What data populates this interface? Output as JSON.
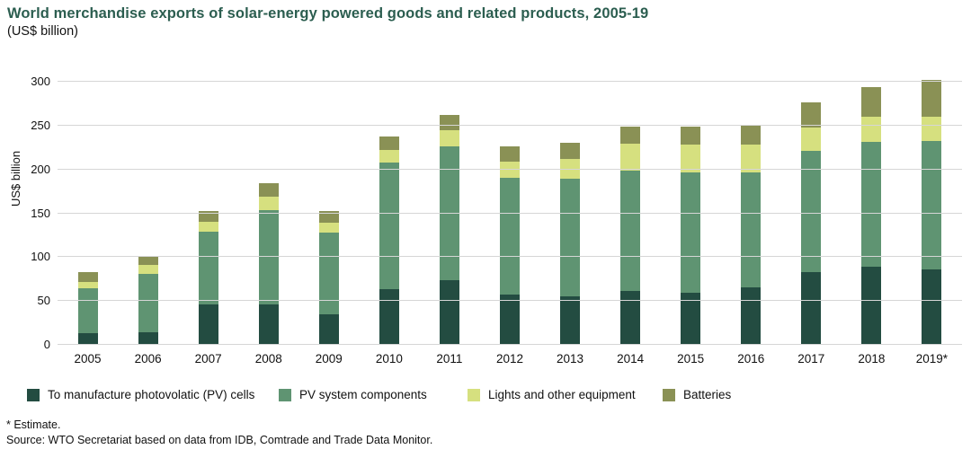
{
  "header": {
    "title": "World merchandise exports of solar-energy powered goods and related products, 2005-19",
    "subtitle": "(US$ billion)"
  },
  "chart_data": {
    "type": "bar",
    "stacked": true,
    "title": "World merchandise exports of solar-energy powered goods and related products, 2005-19 (US$ billion)",
    "xlabel": "",
    "ylabel": "US$ billion",
    "ylim": [
      0,
      300
    ],
    "yticks": [
      0,
      50,
      100,
      150,
      200,
      250,
      300
    ],
    "grid": true,
    "legend_position": "bottom",
    "categories": [
      "2005",
      "2006",
      "2007",
      "2008",
      "2009",
      "2010",
      "2011",
      "2012",
      "2013",
      "2014",
      "2015",
      "2016",
      "2017",
      "2018",
      "2019*"
    ],
    "series": [
      {
        "name": "To manufacture photovolatic (PV) cells",
        "color": "#234c41",
        "values": [
          12,
          13,
          45,
          45,
          34,
          62,
          73,
          56,
          54,
          60,
          58,
          65,
          82,
          88,
          85
        ]
      },
      {
        "name": "PV system components",
        "color": "#5f9472",
        "values": [
          52,
          67,
          83,
          108,
          93,
          145,
          152,
          133,
          134,
          138,
          138,
          131,
          138,
          142,
          146
        ]
      },
      {
        "name": "Lights and other equipment",
        "color": "#d6e07f",
        "values": [
          7,
          10,
          11,
          15,
          11,
          14,
          19,
          19,
          23,
          30,
          31,
          31,
          27,
          29,
          28
        ]
      },
      {
        "name": "Batteries",
        "color": "#8a9155",
        "values": [
          11,
          9,
          13,
          15,
          14,
          16,
          17,
          17,
          18,
          20,
          21,
          23,
          28,
          34,
          42
        ]
      }
    ],
    "totals": [
      82,
      99,
      152,
      183,
      152,
      237,
      261,
      225,
      229,
      248,
      248,
      250,
      275,
      293,
      301
    ]
  },
  "footer": {
    "estimate_note": "* Estimate.",
    "source_note": "Source: WTO Secretariat based on data from IDB, Comtrade and Trade Data Monitor."
  }
}
